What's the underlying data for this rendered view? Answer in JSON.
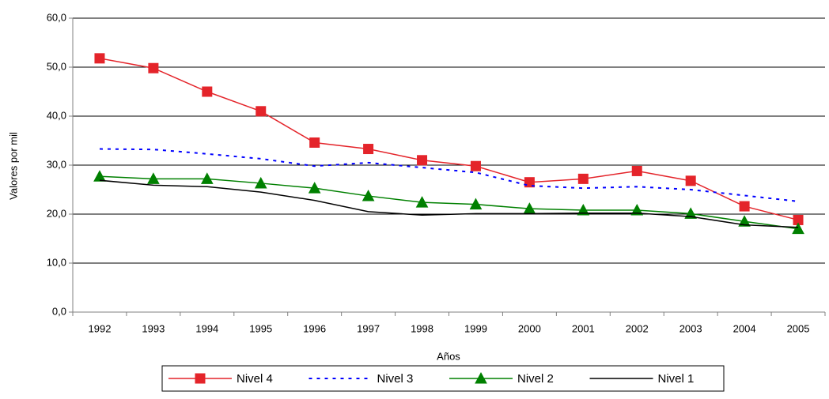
{
  "chart_data": {
    "type": "line",
    "x_label": "Años",
    "y_label": "Valores por mil",
    "categories": [
      "1992",
      "1993",
      "1994",
      "1995",
      "1996",
      "1997",
      "1998",
      "1999",
      "2000",
      "2001",
      "2002",
      "2003",
      "2004",
      "2005"
    ],
    "series": [
      {
        "name": "Nivel 4",
        "color": "#e4242a",
        "marker": "square",
        "dash": "solid",
        "values": [
          51.8,
          49.8,
          45.0,
          41.0,
          34.6,
          33.3,
          31.0,
          29.8,
          26.5,
          27.2,
          28.8,
          26.8,
          21.6,
          18.8
        ]
      },
      {
        "name": "Nivel 3",
        "color": "#0000ff",
        "marker": "none",
        "dash": "dotted",
        "values": [
          33.3,
          33.2,
          32.3,
          31.3,
          29.8,
          30.5,
          29.5,
          28.5,
          25.8,
          25.3,
          25.6,
          25.0,
          23.8,
          22.6
        ]
      },
      {
        "name": "Nivel 2",
        "color": "#008000",
        "marker": "triangle",
        "dash": "solid",
        "values": [
          27.7,
          27.2,
          27.2,
          26.3,
          25.3,
          23.7,
          22.4,
          22.0,
          21.1,
          20.8,
          20.8,
          20.1,
          18.5,
          17.0
        ]
      },
      {
        "name": "Nivel 1",
        "color": "#000000",
        "marker": "none",
        "dash": "solid",
        "values": [
          26.9,
          25.9,
          25.6,
          24.5,
          22.8,
          20.5,
          19.8,
          20.1,
          20.1,
          20.2,
          20.2,
          19.5,
          17.8,
          17.3
        ]
      }
    ],
    "ylim": [
      0,
      60
    ],
    "yticks": [
      {
        "value": 0,
        "label": "0,0"
      },
      {
        "value": 10,
        "label": "10,0"
      },
      {
        "value": 20,
        "label": "20,0"
      },
      {
        "value": 30,
        "label": "30,0"
      },
      {
        "value": 40,
        "label": "40,0"
      },
      {
        "value": 50,
        "label": "50,0"
      },
      {
        "value": 60,
        "label": "60,0"
      }
    ],
    "grid": true,
    "legend": "bottom"
  }
}
